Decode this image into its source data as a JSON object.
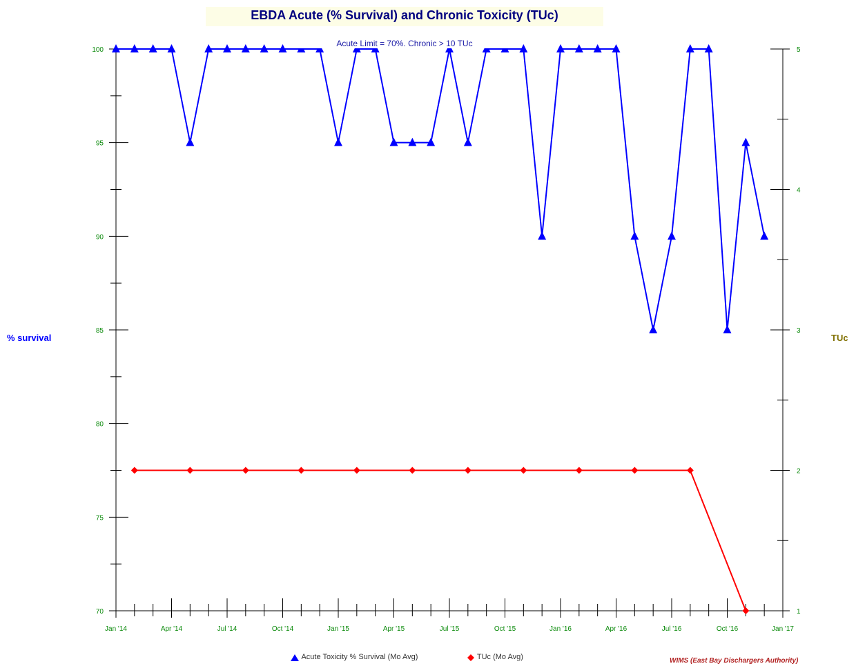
{
  "chart_data": {
    "type": "line",
    "title": "EBDA Acute (% Survival) and Chronic Toxicity (TUc)",
    "subtitle": "Acute Limit = 70%. Chronic  > 10 TUc",
    "ylabel_left": "% survival",
    "ylabel_right": "TUc",
    "ylim_left": [
      70,
      100
    ],
    "ylim_right": [
      1,
      5
    ],
    "xlim": [
      "2014-01",
      "2017-01"
    ],
    "x_tick_labels": [
      "Jan '14",
      "Apr '14",
      "Jul '14",
      "Oct '14",
      "Jan '15",
      "Apr '15",
      "Jul '15",
      "Oct '15",
      "Jan '16",
      "Apr '16",
      "Jul '16",
      "Oct '16",
      "Jan '17"
    ],
    "y_left_tick_labels": [
      "70",
      "75",
      "80",
      "85",
      "90",
      "95",
      "100"
    ],
    "y_right_tick_labels": [
      "1",
      "2",
      "3",
      "4",
      "5"
    ],
    "grid": false,
    "legend_position": "bottom",
    "series": [
      {
        "name": "Acute Toxicity % Survival (Mo  Avg)",
        "axis": "left",
        "color": "#0000ff",
        "marker": "triangle",
        "x": [
          "2014-01",
          "2014-02",
          "2014-03",
          "2014-04",
          "2014-05",
          "2014-06",
          "2014-07",
          "2014-08",
          "2014-09",
          "2014-10",
          "2014-11",
          "2014-12",
          "2015-01",
          "2015-02",
          "2015-03",
          "2015-04",
          "2015-05",
          "2015-06",
          "2015-07",
          "2015-08",
          "2015-09",
          "2015-10",
          "2015-11",
          "2015-12",
          "2016-01",
          "2016-02",
          "2016-03",
          "2016-04",
          "2016-05",
          "2016-06",
          "2016-07",
          "2016-08",
          "2016-09",
          "2016-10",
          "2016-11",
          "2016-12"
        ],
        "values": [
          100,
          100,
          100,
          100,
          95,
          100,
          100,
          100,
          100,
          100,
          100,
          100,
          95,
          100,
          100,
          95,
          95,
          95,
          100,
          95,
          100,
          100,
          100,
          90,
          100,
          100,
          100,
          100,
          90,
          85,
          90,
          100,
          100,
          85,
          95,
          90
        ]
      },
      {
        "name": "TUc (Mo  Avg)",
        "axis": "right",
        "color": "#ff0000",
        "marker": "diamond",
        "x": [
          "2014-02",
          "2014-05",
          "2014-08",
          "2014-11",
          "2015-02",
          "2015-05",
          "2015-08",
          "2015-11",
          "2016-02",
          "2016-05",
          "2016-08",
          "2016-11"
        ],
        "values": [
          2,
          2,
          2,
          2,
          2,
          2,
          2,
          2,
          2,
          2,
          2,
          1
        ]
      }
    ]
  },
  "credit": "WIMS (East Bay Dischargers Authority)",
  "colors": {
    "axis_tick_text": "#0b8a0b",
    "title": "#00007f",
    "acute": "#0000ff",
    "tuc": "#ff0000",
    "tuc_label": "#807000"
  }
}
